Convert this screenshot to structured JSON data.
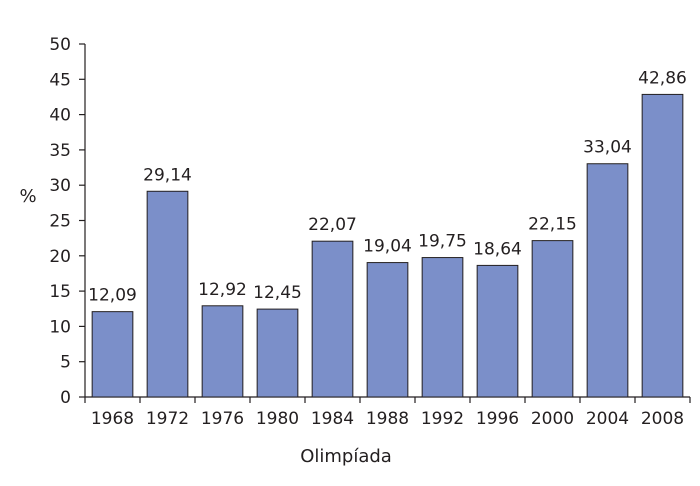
{
  "chart_data": {
    "type": "bar",
    "title": "",
    "xlabel": "Olimpíada",
    "ylabel": "%",
    "categories": [
      "1968",
      "1972",
      "1976",
      "1980",
      "1984",
      "1988",
      "1992",
      "1996",
      "2000",
      "2004",
      "2008"
    ],
    "values": [
      12.09,
      29.14,
      12.92,
      12.45,
      22.07,
      19.04,
      19.75,
      18.64,
      22.15,
      33.04,
      42.86
    ],
    "value_labels": [
      "12,09",
      "29,14",
      "12,92",
      "12,45",
      "22,07",
      "19,04",
      "19,75",
      "18,64",
      "22,15",
      "33,04",
      "42,86"
    ],
    "ylim": [
      0,
      50
    ],
    "yticks": [
      0,
      5,
      10,
      15,
      20,
      25,
      30,
      35,
      40,
      45,
      50
    ],
    "grid": false,
    "bar_color": "#7b8fc9"
  }
}
